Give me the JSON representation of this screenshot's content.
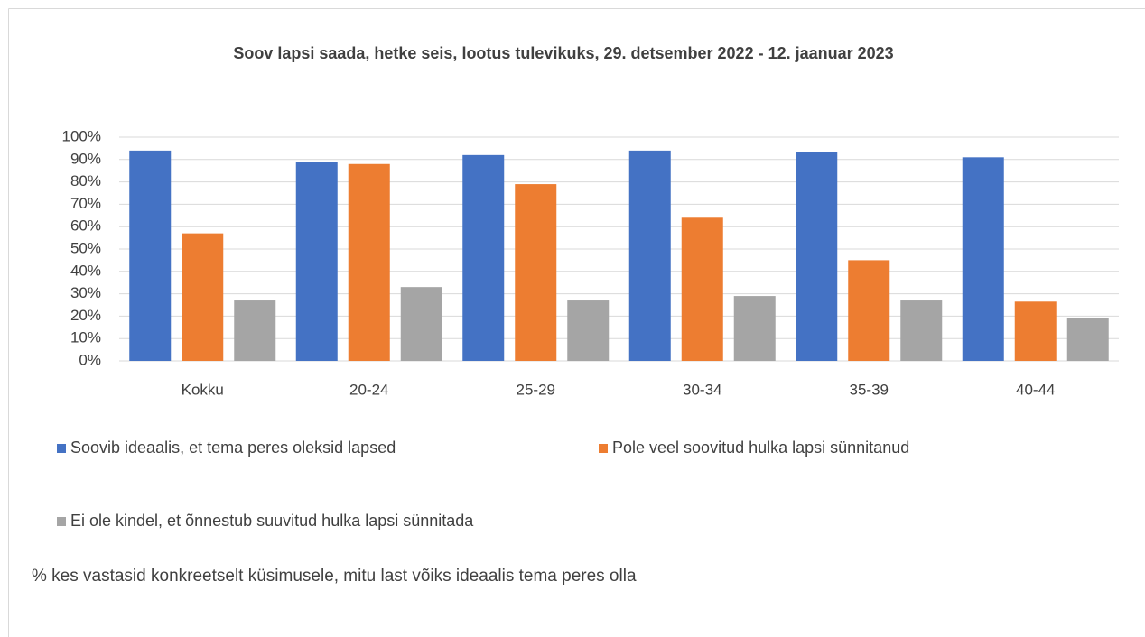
{
  "chart_data": {
    "type": "bar",
    "title": "Soov lapsi saada, hetke seis, lootus tulevikuks, 29. detsember 2022 - 12. jaanuar 2023",
    "categories": [
      "Kokku",
      "20-24",
      "25-29",
      "30-34",
      "35-39",
      "40-44"
    ],
    "series": [
      {
        "name": "Soovib ideaalis, et tema peres oleksid lapsed",
        "color": "#4472c4",
        "values": [
          94,
          89,
          92,
          94,
          93.5,
          91
        ]
      },
      {
        "name": "Pole veel soovitud hulka lapsi sünnitanud",
        "color": "#ed7d31",
        "values": [
          57,
          88,
          79,
          64,
          45,
          26.5
        ]
      },
      {
        "name": "Ei ole kindel, et õnnestub suuvitud hulka lapsi sünnitada",
        "color": "#a5a5a5",
        "values": [
          27,
          33,
          27,
          29,
          27,
          19
        ]
      }
    ],
    "ylim": [
      0,
      100
    ],
    "yticks": [
      {
        "value": 0,
        "label": "0%"
      },
      {
        "value": 10,
        "label": "10%"
      },
      {
        "value": 20,
        "label": "20%"
      },
      {
        "value": 30,
        "label": "30%"
      },
      {
        "value": 40,
        "label": "40%"
      },
      {
        "value": 50,
        "label": "50%"
      },
      {
        "value": 60,
        "label": "60%"
      },
      {
        "value": 70,
        "label": "70%"
      },
      {
        "value": 80,
        "label": "80%"
      },
      {
        "value": 90,
        "label": "90%"
      },
      {
        "value": 100,
        "label": "100%"
      }
    ],
    "grid": true,
    "legend": "bottom",
    "note": "% kes vastasid konkreetselt küsimusele, mitu last võiks ideaalis tema peres olla"
  }
}
